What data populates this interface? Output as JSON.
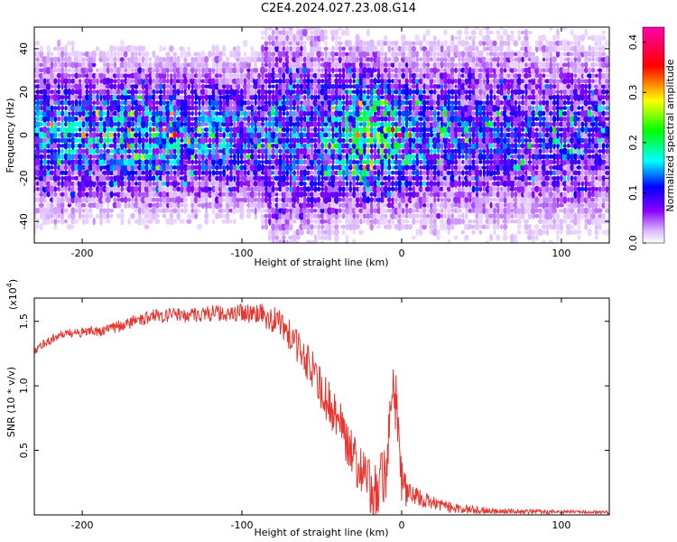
{
  "title": "C2E4.2024.027.23.08.G14",
  "chart_data": [
    {
      "type": "heatmap",
      "xlabel": "Height of straight line (km)",
      "ylabel": "Frequency (Hz)",
      "xlim": [
        -230,
        130
      ],
      "ylim": [
        -50,
        50
      ],
      "x_ticks": [
        -200,
        -100,
        0,
        100
      ],
      "y_ticks": [
        -40,
        -20,
        0,
        20,
        40
      ],
      "colorbar": {
        "label": "Normalized spectral amplitude",
        "range": [
          0.0,
          0.43
        ],
        "ticks": [
          0.0,
          0.1,
          0.2,
          0.3,
          0.4
        ],
        "tick_labels": [
          "0.0",
          "0.1",
          "0.2",
          "0.3",
          "0.4"
        ],
        "colors": [
          "#ffffff",
          "#8800ff",
          "#0000ff",
          "#00ffff",
          "#00ff00",
          "#ffff00",
          "#ff0000",
          "#ff00aa"
        ]
      },
      "intensity_profile": [
        {
          "x": -230,
          "band_halfwidth_hz": 35,
          "peak": 0.14
        },
        {
          "x": -150,
          "band_halfwidth_hz": 32,
          "peak": 0.17
        },
        {
          "x": -90,
          "band_halfwidth_hz": 34,
          "peak": 0.12
        },
        {
          "x": -80,
          "band_halfwidth_hz": 50,
          "peak": 0.12
        },
        {
          "x": -50,
          "band_halfwidth_hz": 42,
          "peak": 0.14
        },
        {
          "x": -15,
          "band_halfwidth_hz": 34,
          "peak": 0.22
        },
        {
          "x": 15,
          "band_halfwidth_hz": 38,
          "peak": 0.13
        },
        {
          "x": 60,
          "band_halfwidth_hz": 42,
          "peak": 0.11
        },
        {
          "x": 130,
          "band_halfwidth_hz": 40,
          "peak": 0.1
        }
      ]
    },
    {
      "type": "line",
      "xlabel": "Height of straight line (km)",
      "ylabel": "SNR (10 * v/v)",
      "y_scale_label": "(x10",
      "y_scale_exponent": "4",
      "y_scale_suffix": ")",
      "xlim": [
        -230,
        130
      ],
      "ylim": [
        0,
        16800
      ],
      "x_ticks": [
        -200,
        -100,
        0,
        100
      ],
      "y_ticks": [
        5000,
        10000,
        15000
      ],
      "y_tick_labels": [
        "0.5",
        "1.0",
        "1.5"
      ],
      "color": "#e8352f",
      "series": [
        {
          "points": [
            [
              -230,
              12600
            ],
            [
              -225,
              13200
            ],
            [
              -215,
              13900
            ],
            [
              -205,
              14100
            ],
            [
              -195,
              14200
            ],
            [
              -185,
              14300
            ],
            [
              -175,
              14700
            ],
            [
              -165,
              15100
            ],
            [
              -155,
              15400
            ],
            [
              -145,
              15500
            ],
            [
              -135,
              15500
            ],
            [
              -125,
              15600
            ],
            [
              -115,
              15600
            ],
            [
              -105,
              15700
            ],
            [
              -95,
              15600
            ],
            [
              -85,
              15400
            ],
            [
              -75,
              14800
            ],
            [
              -68,
              13500
            ],
            [
              -62,
              12500
            ],
            [
              -55,
              11000
            ],
            [
              -50,
              9800
            ],
            [
              -45,
              8400
            ],
            [
              -40,
              7800
            ],
            [
              -35,
              6000
            ],
            [
              -30,
              4500
            ],
            [
              -25,
              3500
            ],
            [
              -20,
              2200
            ],
            [
              -15,
              1500
            ],
            [
              -10,
              3500
            ],
            [
              -7,
              7000
            ],
            [
              -5,
              9500
            ],
            [
              -3,
              9000
            ],
            [
              -1,
              4000
            ],
            [
              1,
              2000
            ],
            [
              5,
              1700
            ],
            [
              10,
              1300
            ],
            [
              20,
              900
            ],
            [
              30,
              600
            ],
            [
              40,
              450
            ],
            [
              50,
              350
            ],
            [
              60,
              300
            ],
            [
              70,
              280
            ],
            [
              80,
              260
            ],
            [
              90,
              250
            ],
            [
              100,
              240
            ],
            [
              110,
              230
            ],
            [
              120,
              220
            ],
            [
              130,
              220
            ]
          ],
          "noise": [
            [
              -230,
              300
            ],
            [
              -160,
              500
            ],
            [
              -100,
              700
            ],
            [
              -70,
              1200
            ],
            [
              -45,
              1800
            ],
            [
              -20,
              2000
            ],
            [
              -5,
              3000
            ],
            [
              5,
              900
            ],
            [
              20,
              500
            ],
            [
              60,
              200
            ],
            [
              130,
              150
            ]
          ]
        }
      ]
    }
  ]
}
